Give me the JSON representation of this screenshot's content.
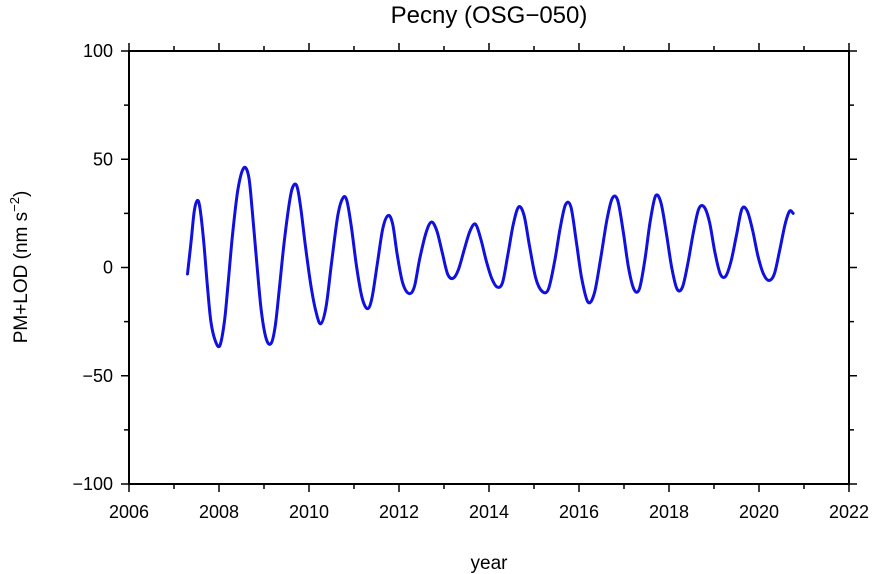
{
  "chart_data": {
    "type": "line",
    "title": "Pecny (OSG−050)",
    "xlabel": "year",
    "ylabel": "PM+LOD (nm s",
    "ylabel_superscript": "−2",
    "ylabel_suffix": ")",
    "xlim": [
      2006,
      2022
    ],
    "ylim": [
      -100,
      100
    ],
    "x_ticks": [
      2006,
      2008,
      2010,
      2012,
      2014,
      2016,
      2018,
      2020,
      2022
    ],
    "x_tick_labels": [
      "2006",
      "2008",
      "2010",
      "2012",
      "2014",
      "2016",
      "2018",
      "2020",
      "2022"
    ],
    "y_ticks": [
      -100,
      -50,
      0,
      50,
      100
    ],
    "y_tick_labels": [
      "−100",
      "−50",
      "0",
      "50",
      "100"
    ],
    "grid": false,
    "series": [
      {
        "color": "#1010e0",
        "x": [
          2007.3,
          2007.38,
          2007.45,
          2007.52,
          2007.58,
          2007.66,
          2007.74,
          2007.82,
          2007.92,
          2008.02,
          2008.12,
          2008.2,
          2008.3,
          2008.42,
          2008.55,
          2008.66,
          2008.74,
          2008.84,
          2008.94,
          2009.05,
          2009.16,
          2009.25,
          2009.34,
          2009.45,
          2009.58,
          2009.66,
          2009.74,
          2009.82,
          2009.92,
          2010.04,
          2010.15,
          2010.26,
          2010.38,
          2010.5,
          2010.64,
          2010.75,
          2010.84,
          2010.94,
          2011.06,
          2011.18,
          2011.3,
          2011.4,
          2011.52,
          2011.64,
          2011.76,
          2011.86,
          2011.96,
          2012.08,
          2012.22,
          2012.34,
          2012.46,
          2012.6,
          2012.72,
          2012.84,
          2012.96,
          2013.08,
          2013.2,
          2013.32,
          2013.46,
          2013.58,
          2013.7,
          2013.82,
          2013.94,
          2014.06,
          2014.18,
          2014.3,
          2014.42,
          2014.54,
          2014.66,
          2014.78,
          2014.9,
          2015.04,
          2015.18,
          2015.32,
          2015.46,
          2015.58,
          2015.7,
          2015.82,
          2015.94,
          2016.06,
          2016.2,
          2016.34,
          2016.48,
          2016.62,
          2016.74,
          2016.86,
          2016.98,
          2017.1,
          2017.22,
          2017.34,
          2017.46,
          2017.58,
          2017.7,
          2017.82,
          2017.94,
          2018.06,
          2018.18,
          2018.3,
          2018.42,
          2018.54,
          2018.66,
          2018.78,
          2018.9,
          2019.02,
          2019.14,
          2019.26,
          2019.38,
          2019.5,
          2019.62,
          2019.74,
          2019.86,
          2019.98,
          2020.1,
          2020.22,
          2020.34,
          2020.46,
          2020.58,
          2020.68,
          2020.76
        ],
        "values": [
          -3,
          12,
          26,
          31,
          27,
          12,
          -8,
          -25,
          -34,
          -36,
          -25,
          -8,
          15,
          36,
          46,
          42,
          26,
          2,
          -20,
          -33,
          -35,
          -27,
          -10,
          12,
          32,
          38,
          37,
          27,
          10,
          -8,
          -20,
          -26,
          -18,
          2,
          24,
          32,
          31,
          19,
          0,
          -14,
          -19,
          -14,
          2,
          18,
          24,
          20,
          6,
          -7,
          -12,
          -9,
          4,
          16,
          21,
          17,
          7,
          -3,
          -5,
          -1,
          9,
          17,
          20,
          13,
          3,
          -5,
          -9,
          -7,
          6,
          20,
          28,
          24,
          10,
          -5,
          -11,
          -10,
          3,
          18,
          29,
          28,
          12,
          -5,
          -16,
          -12,
          4,
          22,
          32,
          31,
          17,
          0,
          -10,
          -10,
          3,
          21,
          33,
          30,
          16,
          0,
          -10,
          -9,
          2,
          16,
          27,
          28,
          21,
          7,
          -3,
          -4,
          3,
          15,
          27,
          26,
          17,
          5,
          -3,
          -6,
          -3,
          8,
          20,
          26,
          25
        ]
      }
    ]
  }
}
